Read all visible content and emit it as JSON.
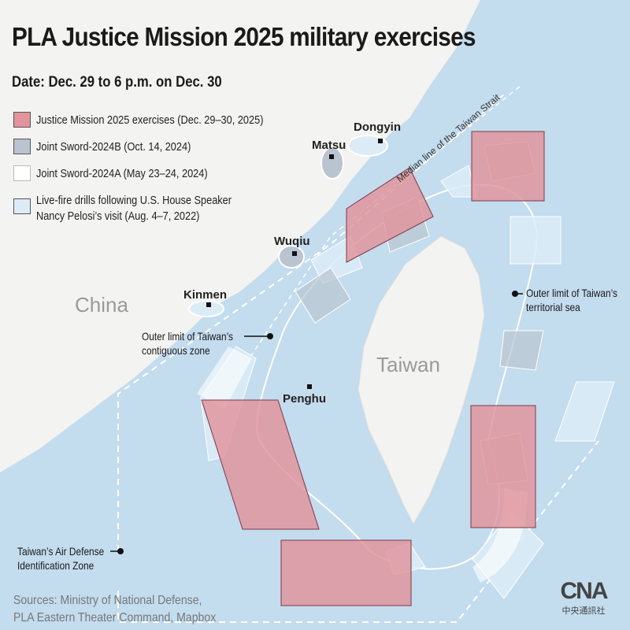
{
  "title": "PLA Justice Mission 2025 military exercises",
  "date": "Date: Dec. 29 to 6 p.m. on Dec. 30",
  "legend": [
    {
      "label": "Justice Mission 2025 exercises (Dec. 29–30, 2025)",
      "color": "#e2939b"
    },
    {
      "label": "Joint Sword-2024B (Oct. 14, 2024)",
      "color": "#b9c4d0"
    },
    {
      "label": "Joint Sword-2024A (May 23–24, 2024)",
      "color": "#ffffff"
    },
    {
      "label_line1": "Live-fire drills following U.S. House Speaker",
      "label_line2": "Nancy Pelosi’s visit (Aug. 4–7, 2022)",
      "color": "#dcecf7"
    }
  ],
  "places": {
    "china": "China",
    "taiwan": "Taiwan",
    "dongyin": "Dongyin",
    "matsu": "Matsu",
    "wuqiu": "Wuqiu",
    "kinmen": "Kinmen",
    "penghu": "Penghu"
  },
  "annotations": {
    "median_line": "Median line of the Taiwan Strait",
    "territorial_1": "Outer limit of Taiwan’s",
    "territorial_2": "territorial sea",
    "contiguous_1": "Outer limit of Taiwan’s",
    "contiguous_2": "contiguous zone",
    "adiz_1": "Taiwan’s Air Defense",
    "adiz_2": "Identification Zone"
  },
  "sources_1": "Sources: Ministry of National Defense,",
  "sources_2": "PLA Eastern Theater Command, Mapbox",
  "logo": {
    "text": "CNA",
    "subtitle": "中央通訊社"
  },
  "colors": {
    "sea": "#c3dcee",
    "land": "#f3f3f1",
    "justice_mission_2025": "#e2939b",
    "joint_sword_2024b": "#b9c4d0",
    "joint_sword_2024a": "#ffffff",
    "pelosi_2022": "#dcecf7"
  }
}
